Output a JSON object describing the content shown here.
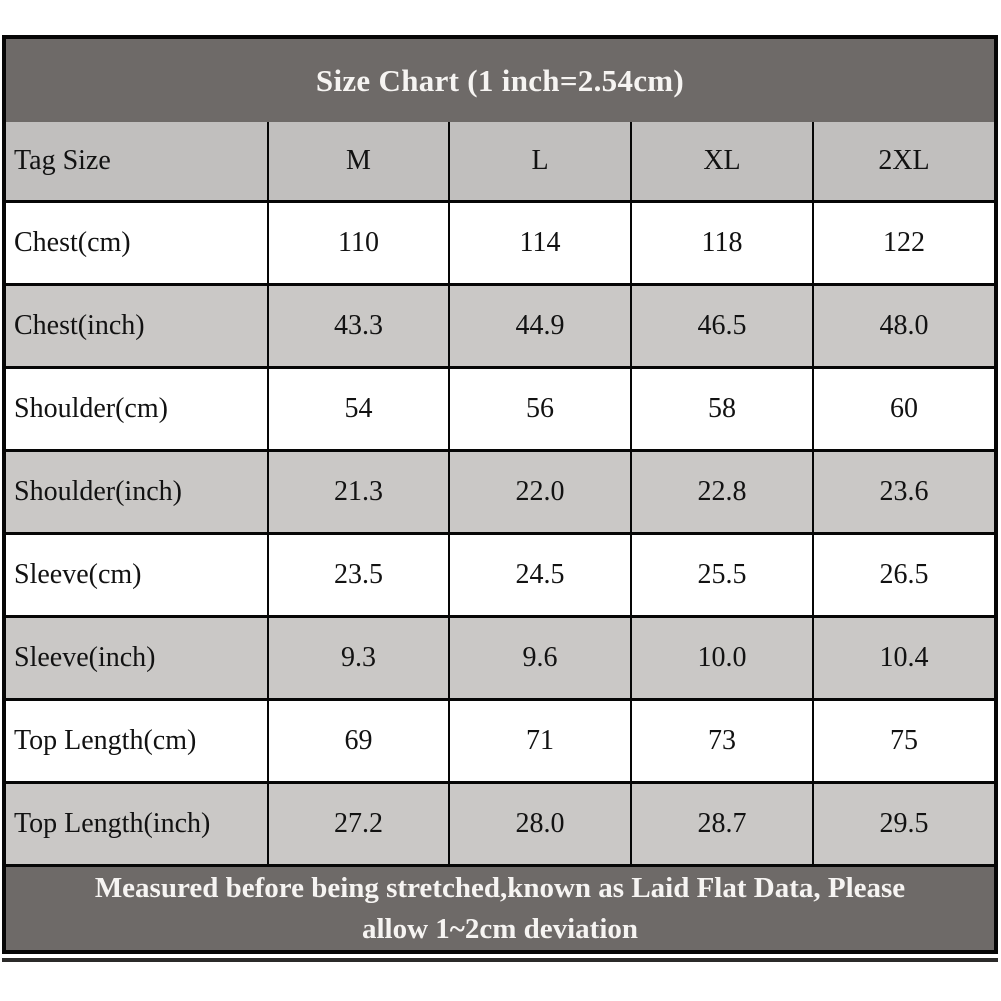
{
  "colors": {
    "dark-bg": "#6e6a68",
    "tag-row-bg": "#c1bfbe",
    "stripe-bg": "#cac8c6",
    "border": "#060606",
    "title-text": "#f6f4f2",
    "cell-text": "#121212"
  },
  "chart_data": {
    "type": "table",
    "title": "Size Chart (1 inch=2.54cm)",
    "columns": [
      "Tag Size",
      "M",
      "L",
      "XL",
      "2XL"
    ],
    "rows": [
      {
        "label": "Chest(cm)",
        "values": [
          "110",
          "114",
          "118",
          "122"
        ]
      },
      {
        "label": "Chest(inch)",
        "values": [
          "43.3",
          "44.9",
          "46.5",
          "48.0"
        ]
      },
      {
        "label": "Shoulder(cm)",
        "values": [
          "54",
          "56",
          "58",
          "60"
        ]
      },
      {
        "label": "Shoulder(inch)",
        "values": [
          "21.3",
          "22.0",
          "22.8",
          "23.6"
        ]
      },
      {
        "label": "Sleeve(cm)",
        "values": [
          "23.5",
          "24.5",
          "25.5",
          "26.5"
        ]
      },
      {
        "label": "Sleeve(inch)",
        "values": [
          "9.3",
          "9.6",
          "10.0",
          "10.4"
        ]
      },
      {
        "label": "Top Length(cm)",
        "values": [
          "69",
          "71",
          "73",
          "75"
        ]
      },
      {
        "label": "Top Length(inch)",
        "values": [
          "27.2",
          "28.0",
          "28.7",
          "29.5"
        ]
      }
    ],
    "footer_lines": [
      "Measured before being stretched,known as Laid Flat Data, Please",
      "allow 1~2cm deviation"
    ],
    "footer_note": "Measured before being stretched,known as Laid Flat Data, Please allow 1~2cm deviation"
  }
}
